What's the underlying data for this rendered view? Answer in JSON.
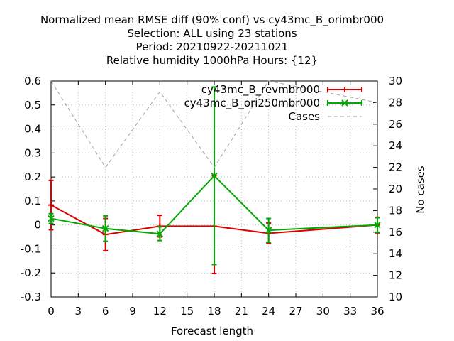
{
  "chart_data": {
    "type": "line",
    "title_lines": [
      "Normalized mean RMSE diff (90% conf) vs cy43mc_B_orimbr000",
      "Selection: ALL using    23 stations",
      "Period: 20210922-20211021",
      "Relative humidity 1000hPa  Hours: {12}"
    ],
    "xlabel": "Forecast length",
    "y2label": "No cases",
    "xlim": [
      0,
      36
    ],
    "ylim": [
      -0.3,
      0.6
    ],
    "y2lim": [
      10,
      30
    ],
    "x_ticks": [
      "0",
      "3",
      "6",
      "9",
      "12",
      "15",
      "18",
      "21",
      "24",
      "27",
      "30",
      "33",
      "36"
    ],
    "y_ticks": [
      "-0.3",
      "-0.2",
      "-0.1",
      "0",
      "0.1",
      "0.2",
      "0.3",
      "0.4",
      "0.5",
      "0.6"
    ],
    "y2_ticks": [
      "10",
      "12",
      "14",
      "16",
      "18",
      "20",
      "22",
      "24",
      "26",
      "28",
      "30"
    ],
    "grid": true,
    "legend_position": "top-right",
    "series": [
      {
        "name": "cy43mc_B_revmbr000",
        "color": "#dd0000",
        "marker": "plus",
        "axis": "y",
        "x": [
          0,
          6,
          12,
          18,
          24,
          36
        ],
        "y": [
          0.083,
          -0.04,
          -0.005,
          -0.005,
          -0.035,
          0.0
        ],
        "err_low": [
          -0.02,
          -0.107,
          -0.05,
          -0.202,
          -0.077,
          -0.033
        ],
        "err_high": [
          0.186,
          0.027,
          0.04,
          0.205,
          0.008,
          0.032
        ]
      },
      {
        "name": "cy43mc_B_ori250mbr000",
        "color": "#00aa00",
        "marker": "x",
        "axis": "y",
        "x": [
          0,
          6,
          12,
          18,
          24,
          36
        ],
        "y": [
          0.027,
          -0.015,
          -0.037,
          0.205,
          -0.022,
          0.0
        ],
        "err_low": [
          0.006,
          -0.068,
          -0.065,
          -0.165,
          -0.072,
          -0.03
        ],
        "err_high": [
          0.047,
          0.038,
          -0.008,
          0.575,
          0.027,
          0.03
        ]
      },
      {
        "name": "Cases",
        "color": "#a0a0a0",
        "marker": "none",
        "dashed": true,
        "axis": "y2",
        "x": [
          0,
          6,
          12,
          18,
          24,
          36
        ],
        "y": [
          30,
          22,
          29,
          22,
          30,
          28
        ]
      }
    ]
  }
}
